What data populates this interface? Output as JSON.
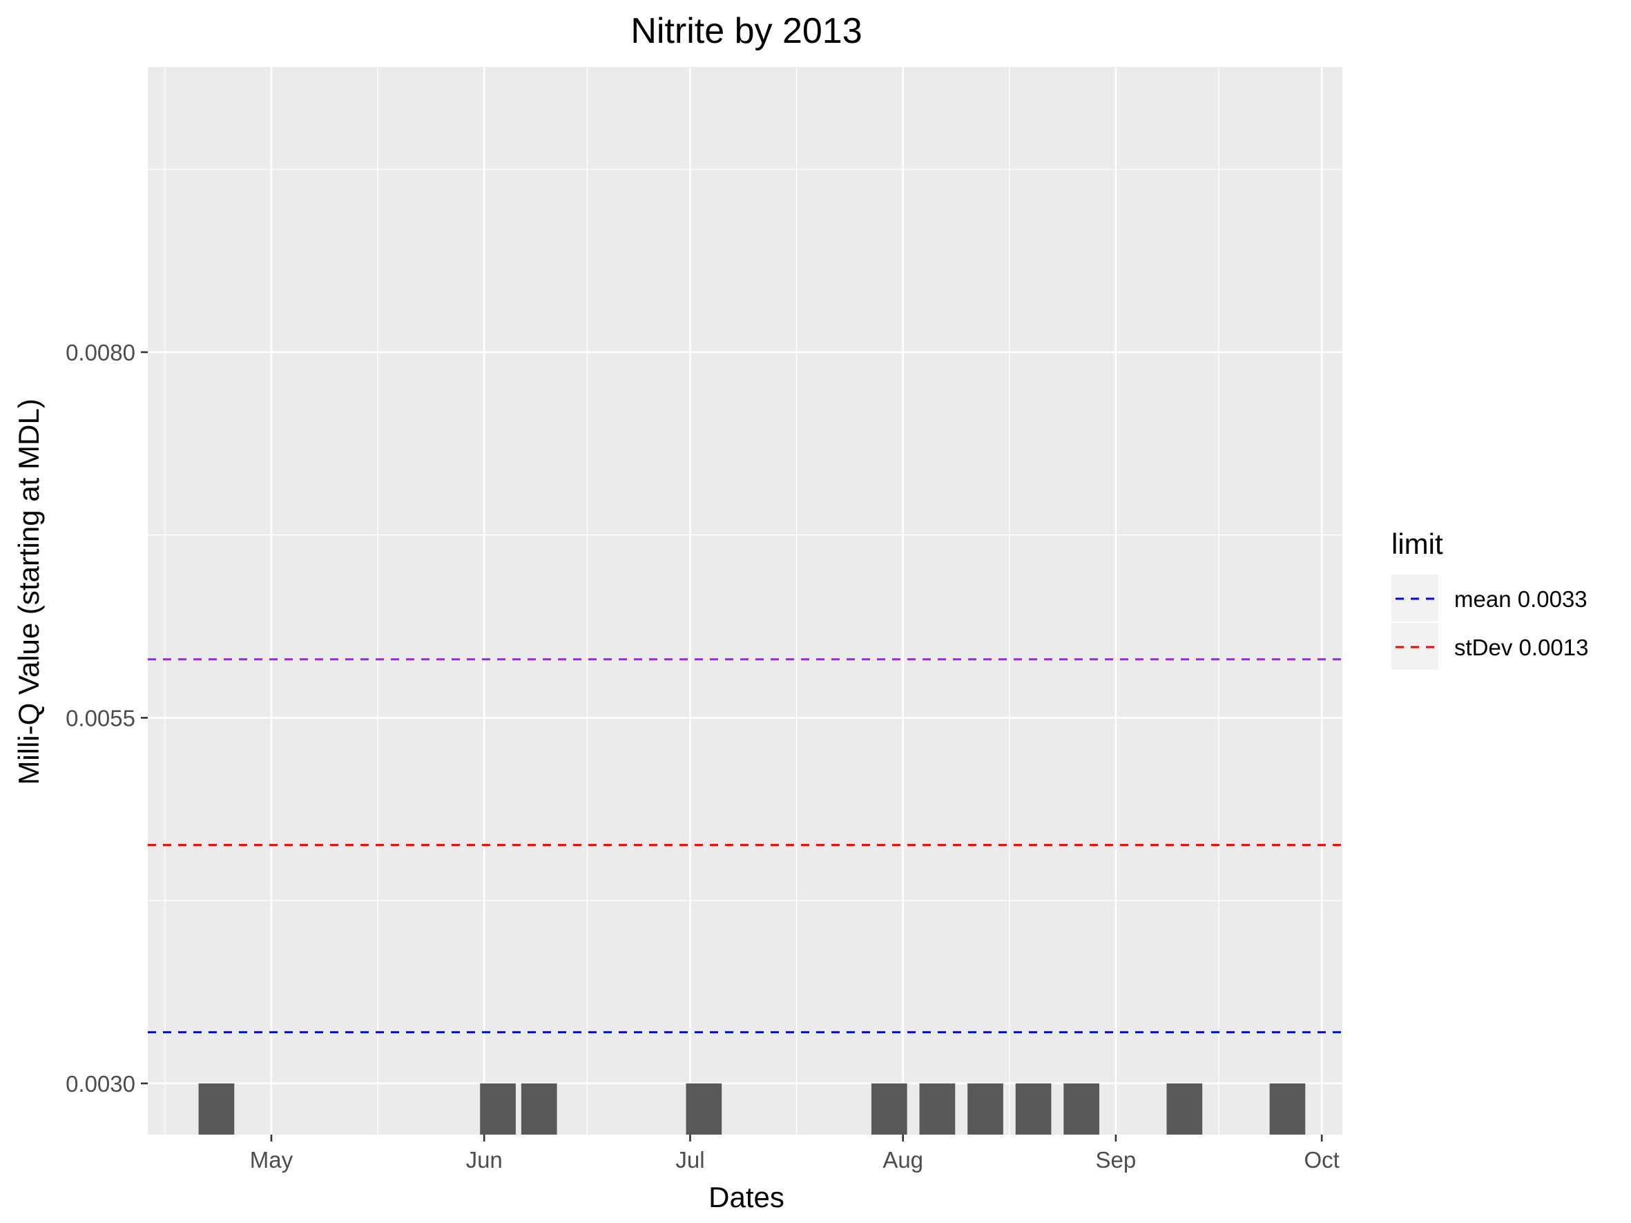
{
  "chart_data": {
    "type": "bar",
    "title": "Nitrite by 2013",
    "xlabel": "Dates",
    "ylabel": "Milli-Q Value (starting at MDL)",
    "x_range": [
      "2013-04-13",
      "2013-10-04"
    ],
    "ylim": [
      0.00265,
      0.00995
    ],
    "bar_baseline": 0.00265,
    "x_ticks": [
      {
        "date": "2013-05-01",
        "label": "May"
      },
      {
        "date": "2013-06-01",
        "label": "Jun"
      },
      {
        "date": "2013-07-01",
        "label": "Jul"
      },
      {
        "date": "2013-08-01",
        "label": "Aug"
      },
      {
        "date": "2013-09-01",
        "label": "Sep"
      },
      {
        "date": "2013-10-01",
        "label": "Oct"
      }
    ],
    "y_ticks": [
      {
        "value": 0.003,
        "label": "0.0030"
      },
      {
        "value": 0.0055,
        "label": "0.0055"
      },
      {
        "value": 0.008,
        "label": "0.0080"
      }
    ],
    "bars": [
      {
        "date": "2013-04-23",
        "value": 0.003
      },
      {
        "date": "2013-06-03",
        "value": 0.003
      },
      {
        "date": "2013-06-09",
        "value": 0.003
      },
      {
        "date": "2013-07-03",
        "value": 0.003
      },
      {
        "date": "2013-07-30",
        "value": 0.003
      },
      {
        "date": "2013-08-06",
        "value": 0.003
      },
      {
        "date": "2013-08-13",
        "value": 0.003
      },
      {
        "date": "2013-08-20",
        "value": 0.003
      },
      {
        "date": "2013-08-27",
        "value": 0.003
      },
      {
        "date": "2013-09-11",
        "value": 0.003
      },
      {
        "date": "2013-09-26",
        "value": 0.003
      }
    ],
    "bar_color": "#595959",
    "hlines": [
      {
        "value": 0.00335,
        "color": "#0000ff"
      },
      {
        "value": 0.00463,
        "color": "#ff0000"
      },
      {
        "value": 0.0059,
        "color": "#a020f0"
      }
    ],
    "legend": {
      "title": "limit",
      "position": "right",
      "entries": [
        {
          "label": "mean 0.0033",
          "color": "#0000ff"
        },
        {
          "label": "stDev 0.0013",
          "color": "#ff0000"
        }
      ]
    },
    "grid": true,
    "panel_background": "#ebebeb",
    "grid_color": "#ffffff"
  }
}
